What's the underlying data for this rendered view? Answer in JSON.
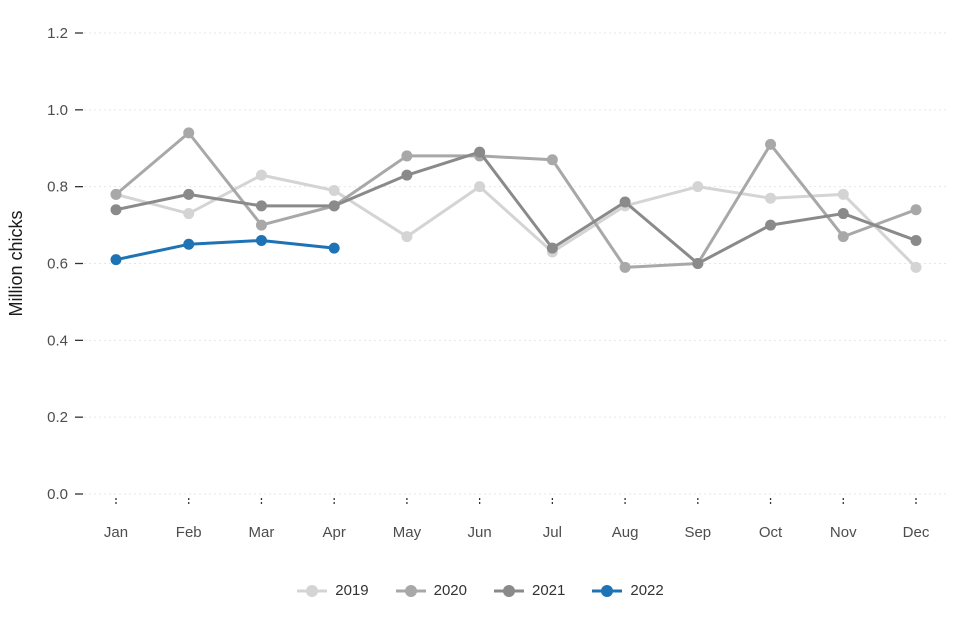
{
  "chart_data": {
    "type": "line",
    "title": "",
    "xlabel": "",
    "ylabel": "Million chicks",
    "x": [
      "Jan",
      "Feb",
      "Mar",
      "Apr",
      "May",
      "Jun",
      "Jul",
      "Aug",
      "Sep",
      "Oct",
      "Nov",
      "Dec"
    ],
    "ylim": [
      0.0,
      1.2
    ],
    "yticks": [
      0.0,
      0.2,
      0.4,
      0.6,
      0.8,
      1.0,
      1.2
    ],
    "grid": true,
    "legend_position": "bottom",
    "series": [
      {
        "name": "2019",
        "color": "#d4d4d4",
        "values": [
          0.78,
          0.73,
          0.83,
          0.79,
          0.67,
          0.8,
          0.63,
          0.75,
          0.8,
          0.77,
          0.78,
          0.59
        ]
      },
      {
        "name": "2020",
        "color": "#a8a8a8",
        "values": [
          0.78,
          0.94,
          0.7,
          0.75,
          0.88,
          0.88,
          0.87,
          0.59,
          0.6,
          0.91,
          0.67,
          0.74
        ]
      },
      {
        "name": "2021",
        "color": "#8a8a8a",
        "values": [
          0.74,
          0.78,
          0.75,
          0.75,
          0.83,
          0.89,
          0.64,
          0.76,
          0.6,
          0.7,
          0.73,
          0.66
        ]
      },
      {
        "name": "2022",
        "color": "#1e73b5",
        "values": [
          0.61,
          0.65,
          0.66,
          0.64,
          null,
          null,
          null,
          null,
          null,
          null,
          null,
          null
        ]
      }
    ],
    "style": {
      "grid_color": "#e6e6e6",
      "tick_color": "#333333",
      "tick_label_color": "#4d4d4d",
      "axis_title_color": "#1a1a1a",
      "line_width": 3,
      "point_radius": 5.5
    }
  }
}
